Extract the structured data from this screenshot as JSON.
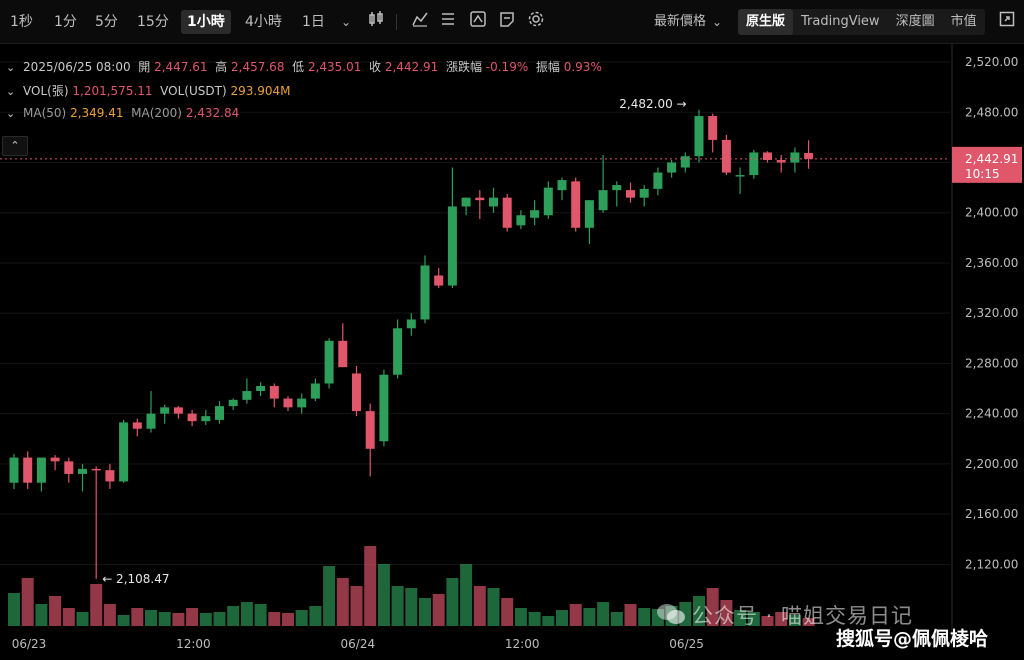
{
  "toolbar": {
    "timeframes": [
      "1秒",
      "1分",
      "5分",
      "15分",
      "1小時",
      "4小時",
      "1日"
    ],
    "active_timeframe": "1小時",
    "price_mode": "最新價格",
    "views": [
      "原生版",
      "TradingView",
      "深度圖",
      "市值"
    ],
    "active_view": "原生版"
  },
  "ohlc": {
    "datetime": "2025/06/25 08:00",
    "open_label": "開",
    "open": "2,447.61",
    "high_label": "高",
    "high": "2,457.68",
    "low_label": "低",
    "low": "2,435.01",
    "close_label": "收",
    "close": "2,442.91",
    "change_label": "漲跌幅",
    "change": "-0.19%",
    "amplitude_label": "振幅",
    "amplitude": "0.93%"
  },
  "volume_info": {
    "vol_label": "VOL(張)",
    "vol": "1,201,575.11",
    "vol_usdt_label": "VOL(USDT)",
    "vol_usdt": "293.904M"
  },
  "ma_info": {
    "ma50_label": "MA(50)",
    "ma50": "2,349.41",
    "ma200_label": "MA(200)",
    "ma200": "2,432.84"
  },
  "current_price": {
    "price": "2,442.91",
    "countdown": "10:15"
  },
  "watermark": {
    "account": "公众号 · 喵姐交易日记",
    "source": "搜狐号@佩佩棱哈"
  },
  "colors": {
    "up": "#2e9e5b",
    "down": "#e0566b",
    "bg": "#000000",
    "price_tag": "#e0566b"
  },
  "chart_data": {
    "type": "candlestick",
    "y_ticks": [
      "2,520.00",
      "2,480.00",
      "2,440.00",
      "2,400.00",
      "2,360.00",
      "2,320.00",
      "2,280.00",
      "2,240.00",
      "2,200.00",
      "2,160.00",
      "2,120.00"
    ],
    "ylim": [
      2090,
      2528
    ],
    "x_ticks": [
      {
        "label": "06/23",
        "index": 1
      },
      {
        "label": "12:00",
        "index": 13
      },
      {
        "label": "06/24",
        "index": 25
      },
      {
        "label": "12:00",
        "index": 37
      },
      {
        "label": "06/25",
        "index": 49
      }
    ],
    "annotations": [
      {
        "label": "2,482.00",
        "index": 49,
        "price": 2482.0
      },
      {
        "label": "2,108.47",
        "index": 6,
        "price": 2108.47
      }
    ],
    "candles": [
      {
        "o": 2185,
        "h": 2208,
        "l": 2180,
        "c": 2205
      },
      {
        "o": 2205,
        "h": 2210,
        "l": 2180,
        "c": 2185
      },
      {
        "o": 2185,
        "h": 2205,
        "l": 2178,
        "c": 2205
      },
      {
        "o": 2205,
        "h": 2207,
        "l": 2195,
        "c": 2202
      },
      {
        "o": 2202,
        "h": 2205,
        "l": 2185,
        "c": 2192
      },
      {
        "o": 2192,
        "h": 2200,
        "l": 2178,
        "c": 2196
      },
      {
        "o": 2196,
        "h": 2198,
        "l": 2108.47,
        "c": 2195
      },
      {
        "o": 2195,
        "h": 2200,
        "l": 2180,
        "c": 2186
      },
      {
        "o": 2186,
        "h": 2235,
        "l": 2185,
        "c": 2233
      },
      {
        "o": 2233,
        "h": 2236,
        "l": 2222,
        "c": 2228
      },
      {
        "o": 2228,
        "h": 2258,
        "l": 2225,
        "c": 2240
      },
      {
        "o": 2240,
        "h": 2247,
        "l": 2232,
        "c": 2245
      },
      {
        "o": 2245,
        "h": 2246,
        "l": 2236,
        "c": 2240
      },
      {
        "o": 2240,
        "h": 2243,
        "l": 2230,
        "c": 2234
      },
      {
        "o": 2234,
        "h": 2243,
        "l": 2231,
        "c": 2238
      },
      {
        "o": 2235,
        "h": 2250,
        "l": 2232,
        "c": 2246
      },
      {
        "o": 2246,
        "h": 2252,
        "l": 2243,
        "c": 2251
      },
      {
        "o": 2251,
        "h": 2268,
        "l": 2248,
        "c": 2258
      },
      {
        "o": 2258,
        "h": 2265,
        "l": 2254,
        "c": 2262
      },
      {
        "o": 2262,
        "h": 2264,
        "l": 2245,
        "c": 2252
      },
      {
        "o": 2252,
        "h": 2254,
        "l": 2242,
        "c": 2245
      },
      {
        "o": 2245,
        "h": 2256,
        "l": 2240,
        "c": 2252
      },
      {
        "o": 2252,
        "h": 2268,
        "l": 2250,
        "c": 2264
      },
      {
        "o": 2264,
        "h": 2300,
        "l": 2260,
        "c": 2298
      },
      {
        "o": 2298,
        "h": 2312,
        "l": 2277,
        "c": 2277
      },
      {
        "o": 2272,
        "h": 2278,
        "l": 2238,
        "c": 2242
      },
      {
        "o": 2242,
        "h": 2248,
        "l": 2190,
        "c": 2212
      },
      {
        "o": 2218,
        "h": 2275,
        "l": 2214,
        "c": 2271
      },
      {
        "o": 2271,
        "h": 2315,
        "l": 2268,
        "c": 2308
      },
      {
        "o": 2308,
        "h": 2320,
        "l": 2302,
        "c": 2315
      },
      {
        "o": 2315,
        "h": 2366,
        "l": 2312,
        "c": 2358
      },
      {
        "o": 2350,
        "h": 2356,
        "l": 2340,
        "c": 2342
      },
      {
        "o": 2342,
        "h": 2436,
        "l": 2340,
        "c": 2405
      },
      {
        "o": 2405,
        "h": 2412,
        "l": 2398,
        "c": 2412
      },
      {
        "o": 2412,
        "h": 2418,
        "l": 2395,
        "c": 2410
      },
      {
        "o": 2405,
        "h": 2420,
        "l": 2400,
        "c": 2412
      },
      {
        "o": 2412,
        "h": 2415,
        "l": 2385,
        "c": 2388
      },
      {
        "o": 2390,
        "h": 2402,
        "l": 2387,
        "c": 2398
      },
      {
        "o": 2396,
        "h": 2410,
        "l": 2390,
        "c": 2402
      },
      {
        "o": 2398,
        "h": 2425,
        "l": 2395,
        "c": 2420
      },
      {
        "o": 2418,
        "h": 2428,
        "l": 2410,
        "c": 2426
      },
      {
        "o": 2425,
        "h": 2428,
        "l": 2385,
        "c": 2388
      },
      {
        "o": 2388,
        "h": 2410,
        "l": 2375,
        "c": 2410
      },
      {
        "o": 2402,
        "h": 2446,
        "l": 2400,
        "c": 2418
      },
      {
        "o": 2418,
        "h": 2425,
        "l": 2405,
        "c": 2422
      },
      {
        "o": 2418,
        "h": 2424,
        "l": 2408,
        "c": 2412
      },
      {
        "o": 2412,
        "h": 2422,
        "l": 2405,
        "c": 2419
      },
      {
        "o": 2419,
        "h": 2436,
        "l": 2414,
        "c": 2432
      },
      {
        "o": 2432,
        "h": 2442,
        "l": 2428,
        "c": 2440
      },
      {
        "o": 2436,
        "h": 2448,
        "l": 2432,
        "c": 2445
      },
      {
        "o": 2445,
        "h": 2482,
        "l": 2440,
        "c": 2477
      },
      {
        "o": 2477,
        "h": 2479,
        "l": 2448,
        "c": 2458
      },
      {
        "o": 2458,
        "h": 2462,
        "l": 2430,
        "c": 2432
      },
      {
        "o": 2430,
        "h": 2436,
        "l": 2415,
        "c": 2430
      },
      {
        "o": 2430,
        "h": 2450,
        "l": 2427,
        "c": 2448
      },
      {
        "o": 2448,
        "h": 2449,
        "l": 2440,
        "c": 2442
      },
      {
        "o": 2442,
        "h": 2446,
        "l": 2432,
        "c": 2440
      },
      {
        "o": 2440,
        "h": 2452,
        "l": 2432,
        "c": 2448
      },
      {
        "o": 2447.61,
        "h": 2457.68,
        "l": 2435.01,
        "c": 2442.91
      }
    ],
    "volumes": [
      33,
      48,
      22,
      30,
      18,
      14,
      42,
      22,
      11,
      18,
      16,
      14,
      13,
      18,
      13,
      14,
      20,
      24,
      22,
      14,
      13,
      16,
      20,
      60,
      48,
      40,
      80,
      62,
      40,
      38,
      28,
      32,
      48,
      62,
      40,
      38,
      28,
      18,
      14,
      10,
      16,
      22,
      18,
      24,
      14,
      22,
      18,
      17,
      20,
      24,
      30,
      38,
      26,
      16,
      14,
      10,
      14,
      11,
      8
    ]
  }
}
